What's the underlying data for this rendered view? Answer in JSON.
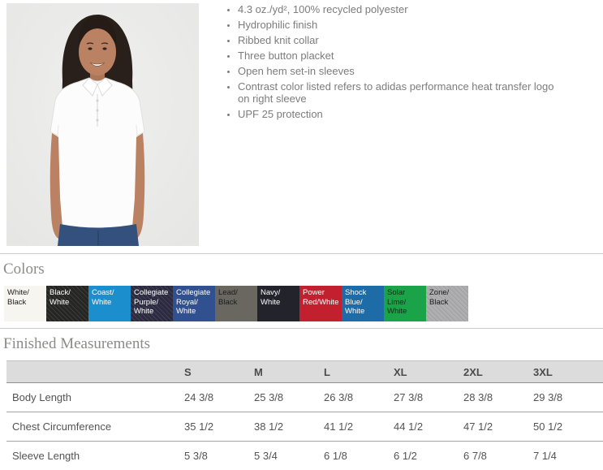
{
  "product": {
    "photo_alt": "Model wearing white adidas women's polo shirt",
    "features": [
      "4.3 oz./yd², 100% recycled polyester",
      "Hydrophilic finish",
      "Ribbed knit collar",
      "Three button placket",
      "Open hem set-in sleeves",
      "Contrast color listed refers to adidas performance heat transfer logo on right sleeve",
      "UPF 25 protection"
    ]
  },
  "colors": {
    "title": "Colors",
    "swatches": [
      {
        "name": "White/Black",
        "lines": [
          "White/",
          "Black"
        ],
        "bg": "#f7f5ef",
        "fg": "#1c1c1c",
        "textured": false
      },
      {
        "name": "Black/White",
        "lines": [
          "Black/",
          "White"
        ],
        "bg": "#262624",
        "fg": "#ffffff",
        "textured": true
      },
      {
        "name": "Coast/White",
        "lines": [
          "Coast/",
          "White"
        ],
        "bg": "#1b8fce",
        "fg": "#ffffff",
        "textured": false
      },
      {
        "name": "Collegiate Purple/White",
        "lines": [
          "Collegiate",
          "Purple/",
          "White"
        ],
        "bg": "#2c2b42",
        "fg": "#ffffff",
        "textured": true
      },
      {
        "name": "Collegiate Royal/White",
        "lines": [
          "Collegiate",
          "Royal/",
          "White"
        ],
        "bg": "#31508f",
        "fg": "#ffffff",
        "textured": false
      },
      {
        "name": "Lead/Black",
        "lines": [
          "Lead/",
          "Black"
        ],
        "bg": "#6a6761",
        "fg": "#1c1c1c",
        "textured": false
      },
      {
        "name": "Navy/White",
        "lines": [
          "Navy/",
          "White"
        ],
        "bg": "#23232c",
        "fg": "#ffffff",
        "textured": false
      },
      {
        "name": "Power Red/White",
        "lines": [
          "Power",
          "Red/White"
        ],
        "bg": "#c2202f",
        "fg": "#ffffff",
        "textured": false
      },
      {
        "name": "Shock Blue/White",
        "lines": [
          "Shock",
          "Blue/",
          "White"
        ],
        "bg": "#1d6ba7",
        "fg": "#ffffff",
        "textured": false
      },
      {
        "name": "Solar Lime/White",
        "lines": [
          "Solar",
          "Lime/",
          "White"
        ],
        "bg": "#1aa348",
        "fg": "#0e2e18",
        "textured": false
      },
      {
        "name": "Zone/Black",
        "lines": [
          "Zone/",
          "Black"
        ],
        "bg": "#acacae",
        "fg": "#1c1c1c",
        "textured": true
      }
    ]
  },
  "measurements": {
    "title": "Finished Measurements",
    "columns": [
      "",
      "S",
      "M",
      "L",
      "XL",
      "2XL",
      "3XL"
    ],
    "rows": [
      {
        "label": "Body Length",
        "values": [
          "24 3/8",
          "25 3/8",
          "26 3/8",
          "27 3/8",
          "28 3/8",
          "29 3/8"
        ]
      },
      {
        "label": "Chest Circumference",
        "values": [
          "35 1/2",
          "38 1/2",
          "41 1/2",
          "44 1/2",
          "47 1/2",
          "50 1/2"
        ]
      },
      {
        "label": "Sleeve Length",
        "values": [
          "5 3/8",
          "5 3/4",
          "6 1/8",
          "6 1/2",
          "6 7/8",
          "7 1/4"
        ]
      }
    ]
  }
}
